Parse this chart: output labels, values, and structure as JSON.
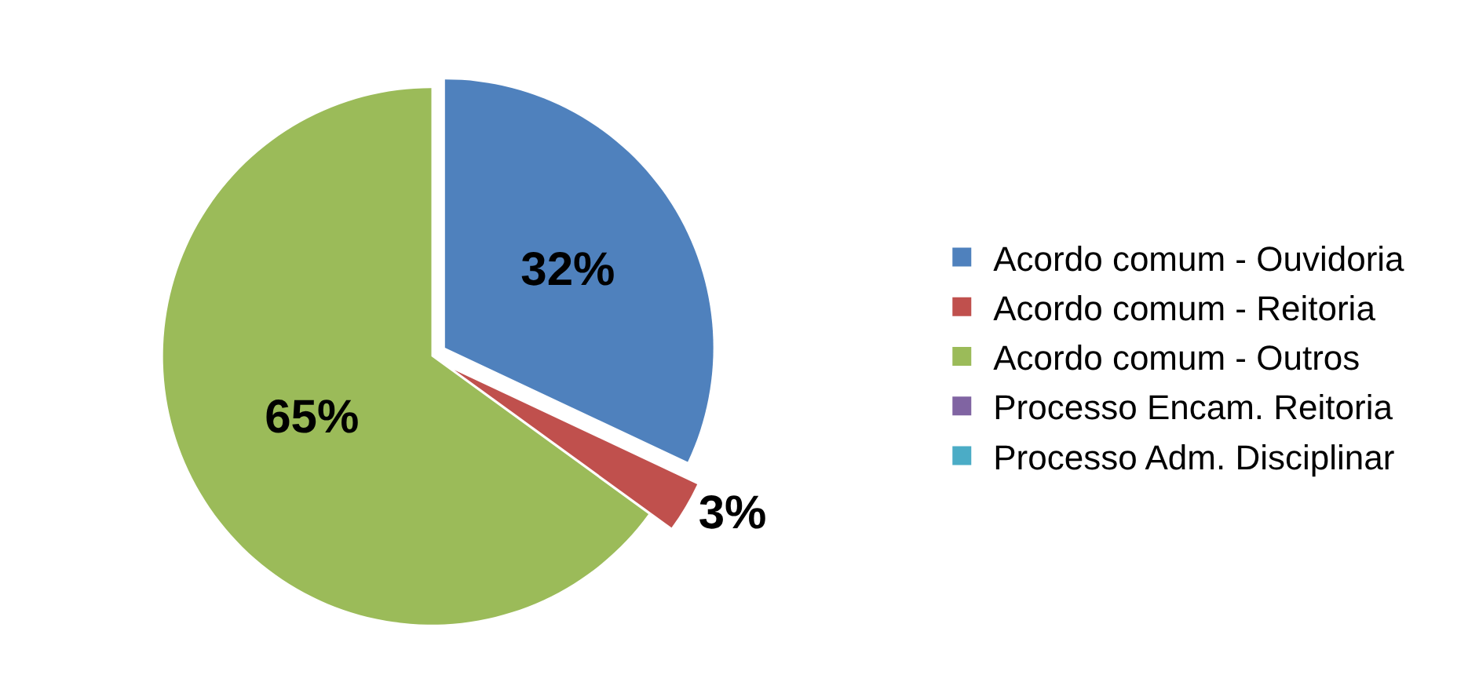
{
  "chart_data": {
    "type": "pie",
    "categories": [
      "Acordo comum - Ouvidoria",
      "Acordo comum - Reitoria",
      "Acordo comum - Outros",
      "Processo Encam. Reitoria",
      "Processo Adm. Disciplinar"
    ],
    "values": [
      32,
      3,
      65,
      0,
      0
    ],
    "colors": [
      "#4f81bd",
      "#c0504d",
      "#9bbb59",
      "#8064a2",
      "#4bacc6"
    ],
    "value_labels": [
      "32%",
      "3%",
      "65%",
      null,
      null
    ],
    "legend": "right"
  }
}
